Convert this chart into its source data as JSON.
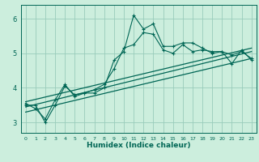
{
  "xlabel": "Humidex (Indice chaleur)",
  "bg_color": "#cceedd",
  "line_color": "#006655",
  "grid_color": "#99ccbb",
  "xlim": [
    -0.5,
    23.5
  ],
  "ylim": [
    2.7,
    6.4
  ],
  "yticks": [
    3,
    4,
    5,
    6
  ],
  "xticks": [
    0,
    1,
    2,
    3,
    4,
    5,
    6,
    7,
    8,
    9,
    10,
    11,
    12,
    13,
    14,
    15,
    16,
    17,
    18,
    19,
    20,
    21,
    22,
    23
  ],
  "series1_x": [
    0,
    1,
    2,
    3,
    4,
    5,
    6,
    7,
    8,
    9,
    10,
    11,
    12,
    13,
    14,
    15,
    16,
    17,
    18,
    19,
    20,
    21,
    22,
    23
  ],
  "series1_y": [
    3.5,
    3.5,
    3.0,
    3.5,
    4.05,
    3.8,
    3.85,
    3.85,
    4.0,
    4.8,
    5.05,
    6.1,
    5.7,
    5.85,
    5.2,
    5.2,
    5.3,
    5.3,
    5.15,
    5.0,
    5.05,
    4.95,
    5.05,
    4.85
  ],
  "series2_x": [
    0,
    1,
    2,
    3,
    4,
    5,
    6,
    7,
    8,
    9,
    10,
    11,
    12,
    13,
    14,
    15,
    16,
    17,
    18,
    19,
    20,
    21,
    22,
    23
  ],
  "series2_y": [
    3.55,
    3.4,
    3.1,
    3.65,
    4.1,
    3.75,
    3.85,
    3.95,
    4.1,
    4.55,
    5.15,
    5.25,
    5.6,
    5.55,
    5.1,
    5.0,
    5.25,
    5.05,
    5.1,
    5.05,
    5.05,
    4.7,
    5.1,
    4.8
  ],
  "line1_x": [
    0,
    23
  ],
  "line1_y": [
    3.45,
    5.05
  ],
  "line2_x": [
    0,
    23
  ],
  "line2_y": [
    3.3,
    4.85
  ],
  "line3_x": [
    0,
    23
  ],
  "line3_y": [
    3.6,
    5.15
  ]
}
